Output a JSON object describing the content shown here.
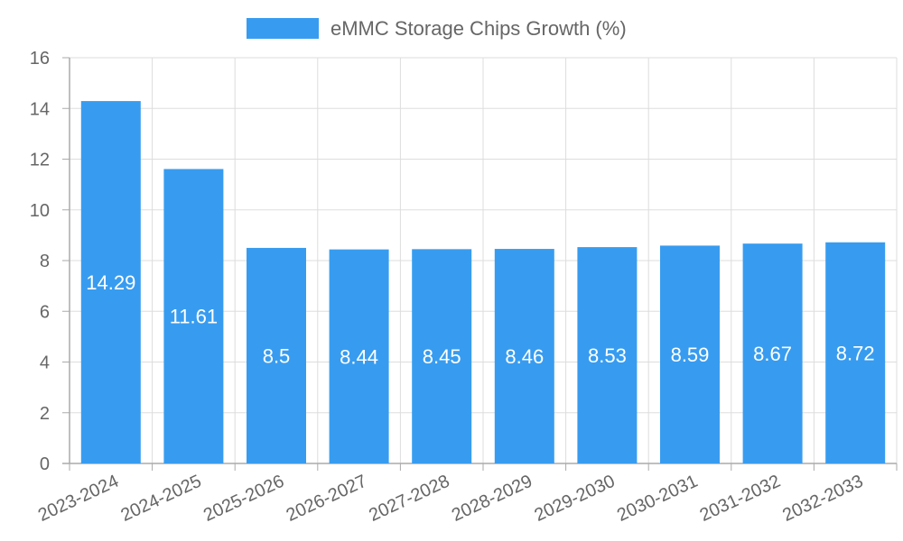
{
  "chart_data": {
    "type": "bar",
    "categories": [
      "2023-2024",
      "2024-2025",
      "2025-2026",
      "2026-2027",
      "2027-2028",
      "2028-2029",
      "2029-2030",
      "2030-2031",
      "2031-2032",
      "2032-2033"
    ],
    "series": [
      {
        "name": "eMMC Storage Chips Growth (%)",
        "values": [
          14.29,
          11.61,
          8.5,
          8.44,
          8.45,
          8.46,
          8.53,
          8.59,
          8.67,
          8.72
        ]
      }
    ],
    "ylim": [
      0,
      16
    ],
    "yticks": [
      0,
      2,
      4,
      6,
      8,
      10,
      12,
      14,
      16
    ],
    "grid": true,
    "legend_position": "top-center",
    "colors": {
      "bar": "#379CF0",
      "grid": "#DDDDDD",
      "axis": "#AAAAAA",
      "text": "#666666",
      "label": "#FFFFFF"
    }
  }
}
